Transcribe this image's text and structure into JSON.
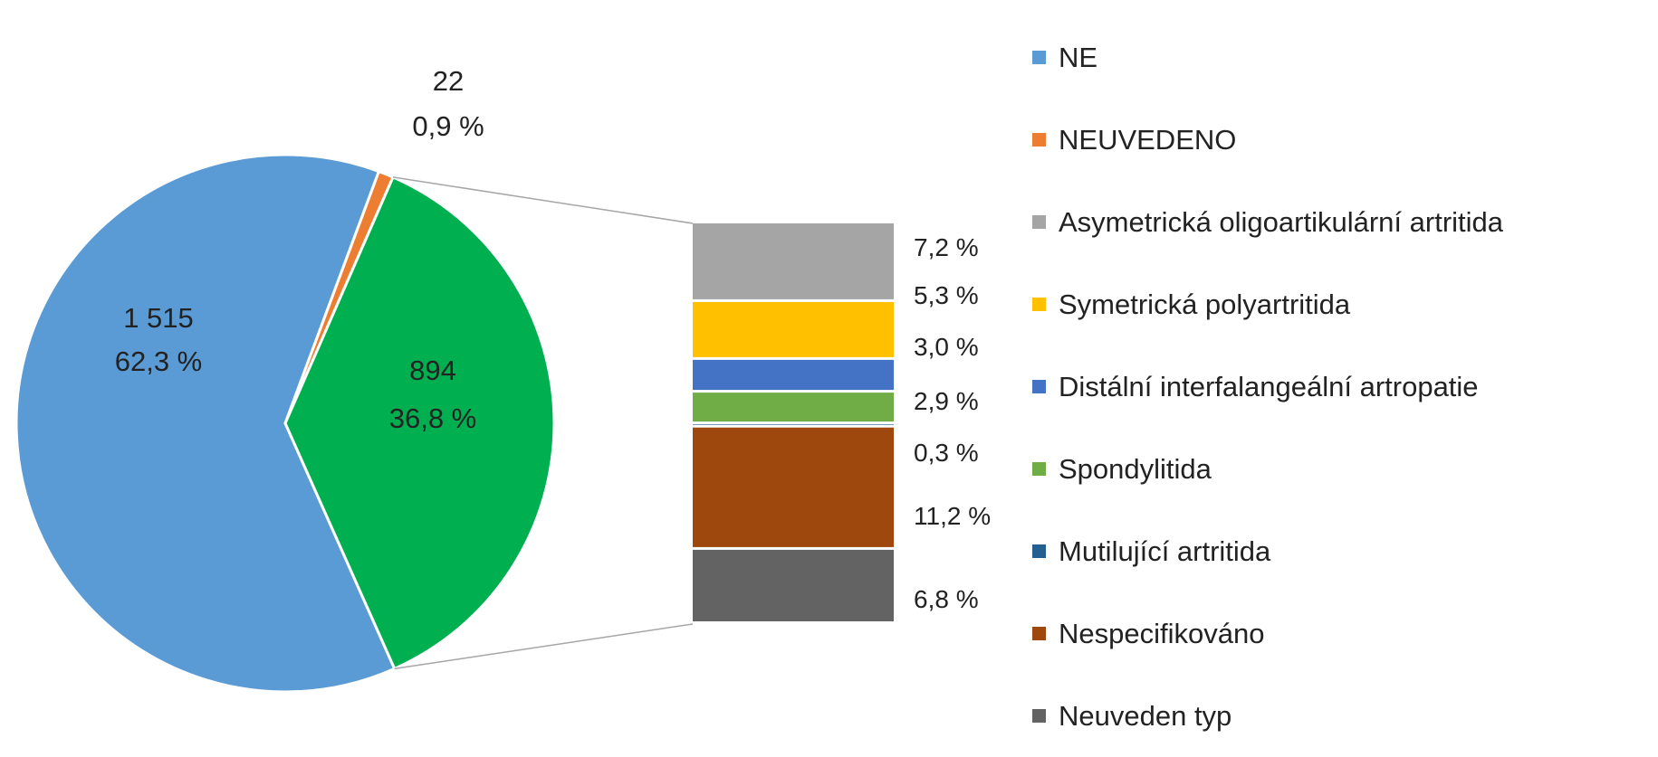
{
  "chart_data": {
    "type": "pie",
    "pie": {
      "slices": [
        {
          "name": "NE",
          "value": 1515,
          "percent": "62,3 %",
          "value_label": "1 515",
          "color": "#5b9bd5"
        },
        {
          "name": "NEUVEDENO",
          "value": 22,
          "percent": "0,9 %",
          "value_label": "22",
          "color": "#ed7d31"
        },
        {
          "name": "",
          "value": 894,
          "percent": "36,8 %",
          "value_label": "894",
          "color": "#00b050"
        }
      ]
    },
    "breakdown": {
      "type": "stacked-bar",
      "of_slice": 2,
      "segments": [
        {
          "name": "Asymetrická oligoartikulární artritida",
          "percent": 7.2,
          "label": "7,2 %",
          "color": "#a5a5a5"
        },
        {
          "name": "Symetrická polyartritida",
          "percent": 5.3,
          "label": "5,3 %",
          "color": "#ffc000"
        },
        {
          "name": "Distální interfalangeální artropatie",
          "percent": 3.0,
          "label": "3,0 %",
          "color": "#4472c4"
        },
        {
          "name": "Spondylitida",
          "percent": 2.9,
          "label": "2,9 %",
          "color": "#70ad47"
        },
        {
          "name": "Mutilující artritida",
          "percent": 0.3,
          "label": "0,3 %",
          "color": "#255e91"
        },
        {
          "name": "Nespecifikováno",
          "percent": 11.2,
          "label": "11,2 %",
          "color": "#9e480e"
        },
        {
          "name": "Neuveden typ",
          "percent": 6.8,
          "label": "6,8 %",
          "color": "#636363"
        }
      ]
    },
    "legend": {
      "placement": "right",
      "entries": [
        {
          "label": "NE",
          "color": "#5b9bd5"
        },
        {
          "label": "NEUVEDENO",
          "color": "#ed7d31"
        },
        {
          "label": "Asymetrická oligoartikulární artritida",
          "color": "#a5a5a5"
        },
        {
          "label": "Symetrická polyartritida",
          "color": "#ffc000"
        },
        {
          "label": "Distální interfalangeální artropatie",
          "color": "#4472c4"
        },
        {
          "label": "Spondylitida",
          "color": "#70ad47"
        },
        {
          "label": "Mutilující artritida",
          "color": "#255e91"
        },
        {
          "label": "Nespecifikováno",
          "color": "#9e480e"
        },
        {
          "label": "Neuveden typ",
          "color": "#636363"
        }
      ]
    }
  }
}
